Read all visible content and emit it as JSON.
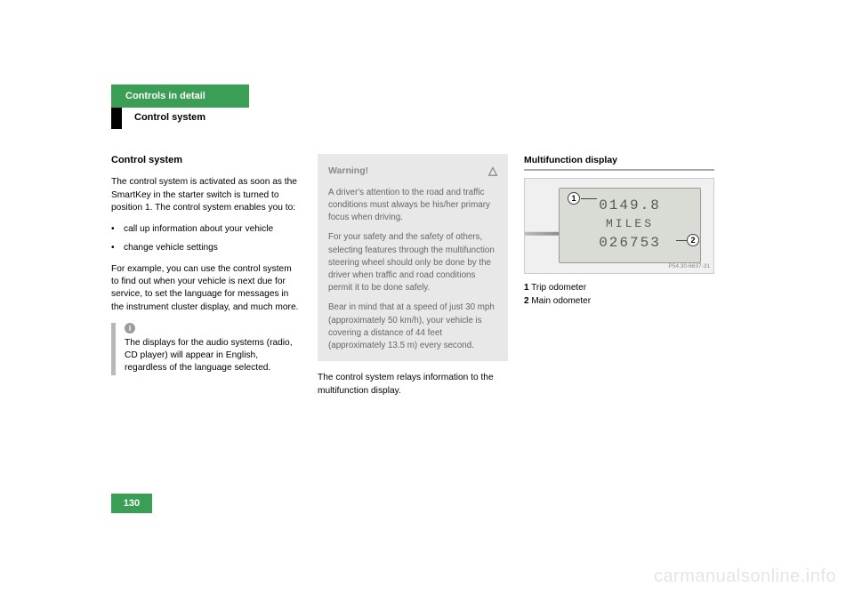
{
  "header": {
    "tab": "Controls in detail",
    "sub": "Control system"
  },
  "col1": {
    "heading": "Control system",
    "p1": "The control system is activated as soon as the SmartKey in the starter switch is turned to position 1. The control system enables you to:",
    "b1": "call up information about your vehicle",
    "b2": "change vehicle settings",
    "p2": "For example, you can use the control system to find out when your vehicle is next due for service, to set the language for messages in the instrument cluster display, and much more.",
    "info": "The displays for the audio systems (radio, CD player) will appear in English, regardless of the language selected."
  },
  "col2": {
    "warn_title": "Warning!",
    "w1": "A driver's attention to the road and traffic conditions must always be his/her primary focus when driving.",
    "w2": "For your safety and the safety of others, selecting features through the multifunction steering wheel should only be done by the driver when traffic and road conditions permit it to be done safely.",
    "w3": "Bear in mind that at a speed of just 30 mph (approximately 50 km/h), your vehicle is covering a distance of 44 feet (approximately 13.5 m) every second.",
    "p1": "The control system relays information to the multifunction display."
  },
  "col3": {
    "heading": "Multifunction display",
    "trip": "0149.8",
    "unit": "MILES",
    "main": "026753",
    "code": "P54.30-6637-31",
    "legend1_num": "1",
    "legend1_txt": "Trip odometer",
    "legend2_num": "2",
    "legend2_txt": "Main odometer"
  },
  "page_number": "130",
  "watermark": "carmanualsonline.info"
}
